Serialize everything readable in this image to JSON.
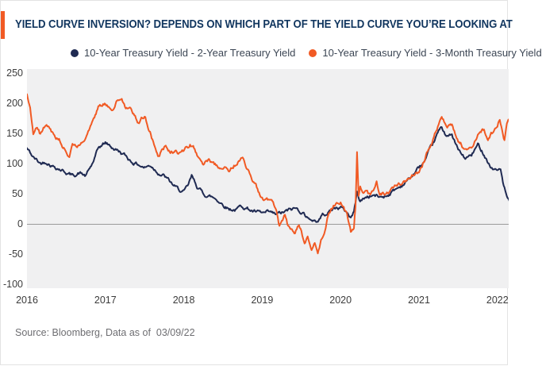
{
  "header": {
    "title": "YIELD CURVE INVERSION? DEPENDS ON WHICH PART OF THE YIELD CURVE YOU’RE LOOKING AT"
  },
  "footer": {
    "source": "Source: Bloomberg, Data as of  03/09/22"
  },
  "colors": {
    "accent_orange": "#f15a24",
    "title_navy": "#11365f",
    "plot_background": "#f0f0f1",
    "zero_line": "#9a9a9a",
    "axis_text": "#3b3b3b",
    "legend_text": "#3c4654",
    "source_text": "#6e6e72"
  },
  "chart_data": {
    "type": "line",
    "title": "YIELD CURVE INVERSION? DEPENDS ON WHICH PART OF THE YIELD CURVE YOU’RE LOOKING AT",
    "units": "basis points (spread)",
    "x_ticks": [
      "2016",
      "2017",
      "2018",
      "2019",
      "2020",
      "2021",
      "2022"
    ],
    "y_ticks": [
      250,
      200,
      150,
      100,
      50,
      0,
      -50,
      -100
    ],
    "ylim": [
      -106,
      256
    ],
    "x_range_years": [
      2016.0,
      2022.17
    ],
    "grid": false,
    "zero_line": true,
    "legend_position": "top",
    "series": [
      {
        "name": "10-Year Treasury Yield - 2-Year Treasury Yield",
        "color": "#1f2a52",
        "noise": 2.4,
        "points": [
          [
            2016.0,
            125
          ],
          [
            2016.08,
            110
          ],
          [
            2016.17,
            100
          ],
          [
            2016.25,
            104
          ],
          [
            2016.33,
            97
          ],
          [
            2016.42,
            92
          ],
          [
            2016.5,
            86
          ],
          [
            2016.58,
            80
          ],
          [
            2016.67,
            85
          ],
          [
            2016.75,
            79
          ],
          [
            2016.83,
            98
          ],
          [
            2016.92,
            126
          ],
          [
            2017.0,
            134
          ],
          [
            2017.08,
            127
          ],
          [
            2017.17,
            121
          ],
          [
            2017.25,
            113
          ],
          [
            2017.33,
            104
          ],
          [
            2017.42,
            99
          ],
          [
            2017.5,
            94
          ],
          [
            2017.58,
            97
          ],
          [
            2017.67,
            87
          ],
          [
            2017.75,
            80
          ],
          [
            2017.83,
            68
          ],
          [
            2017.92,
            57
          ],
          [
            2018.0,
            52
          ],
          [
            2018.05,
            60
          ],
          [
            2018.1,
            77
          ],
          [
            2018.17,
            62
          ],
          [
            2018.25,
            50
          ],
          [
            2018.33,
            46
          ],
          [
            2018.42,
            41
          ],
          [
            2018.5,
            33
          ],
          [
            2018.58,
            26
          ],
          [
            2018.67,
            24
          ],
          [
            2018.75,
            30
          ],
          [
            2018.83,
            25
          ],
          [
            2018.92,
            19
          ],
          [
            2019.0,
            16
          ],
          [
            2019.08,
            17
          ],
          [
            2019.17,
            14
          ],
          [
            2019.25,
            17
          ],
          [
            2019.33,
            21
          ],
          [
            2019.42,
            25
          ],
          [
            2019.5,
            21
          ],
          [
            2019.58,
            13
          ],
          [
            2019.62,
            3
          ],
          [
            2019.67,
            7
          ],
          [
            2019.71,
            4
          ],
          [
            2019.75,
            13
          ],
          [
            2019.83,
            20
          ],
          [
            2019.92,
            26
          ],
          [
            2020.0,
            28
          ],
          [
            2020.08,
            19
          ],
          [
            2020.13,
            11
          ],
          [
            2020.17,
            20
          ],
          [
            2020.21,
            52
          ],
          [
            2020.25,
            38
          ],
          [
            2020.33,
            45
          ],
          [
            2020.42,
            48
          ],
          [
            2020.5,
            44
          ],
          [
            2020.58,
            47
          ],
          [
            2020.67,
            55
          ],
          [
            2020.75,
            61
          ],
          [
            2020.83,
            70
          ],
          [
            2020.92,
            80
          ],
          [
            2021.0,
            93
          ],
          [
            2021.08,
            104
          ],
          [
            2021.17,
            128
          ],
          [
            2021.25,
            152
          ],
          [
            2021.29,
            158
          ],
          [
            2021.33,
            150
          ],
          [
            2021.42,
            146
          ],
          [
            2021.5,
            122
          ],
          [
            2021.58,
            108
          ],
          [
            2021.67,
            113
          ],
          [
            2021.75,
            130
          ],
          [
            2021.83,
            117
          ],
          [
            2021.92,
            94
          ],
          [
            2022.0,
            88
          ],
          [
            2022.04,
            93
          ],
          [
            2022.08,
            62
          ],
          [
            2022.11,
            48
          ],
          [
            2022.14,
            38
          ],
          [
            2022.17,
            26
          ]
        ]
      },
      {
        "name": "10-Year Treasury Yield - 3-Month Treasury Yield",
        "color": "#f15a24",
        "noise": 2.8,
        "points": [
          [
            2016.0,
            215
          ],
          [
            2016.04,
            195
          ],
          [
            2016.08,
            152
          ],
          [
            2016.13,
            160
          ],
          [
            2016.17,
            148
          ],
          [
            2016.21,
            162
          ],
          [
            2016.25,
            168
          ],
          [
            2016.33,
            152
          ],
          [
            2016.42,
            140
          ],
          [
            2016.5,
            122
          ],
          [
            2016.54,
            113
          ],
          [
            2016.58,
            127
          ],
          [
            2016.67,
            130
          ],
          [
            2016.75,
            138
          ],
          [
            2016.83,
            170
          ],
          [
            2016.92,
            196
          ],
          [
            2017.0,
            202
          ],
          [
            2017.08,
            196
          ],
          [
            2017.17,
            208
          ],
          [
            2017.21,
            212
          ],
          [
            2017.25,
            196
          ],
          [
            2017.33,
            188
          ],
          [
            2017.42,
            170
          ],
          [
            2017.5,
            178
          ],
          [
            2017.58,
            150
          ],
          [
            2017.63,
            128
          ],
          [
            2017.67,
            115
          ],
          [
            2017.75,
            128
          ],
          [
            2017.83,
            122
          ],
          [
            2017.92,
            118
          ],
          [
            2018.0,
            122
          ],
          [
            2018.08,
            131
          ],
          [
            2018.13,
            125
          ],
          [
            2018.17,
            113
          ],
          [
            2018.25,
            98
          ],
          [
            2018.33,
            106
          ],
          [
            2018.42,
            96
          ],
          [
            2018.46,
            90
          ],
          [
            2018.54,
            100
          ],
          [
            2018.58,
            91
          ],
          [
            2018.67,
            102
          ],
          [
            2018.75,
            107
          ],
          [
            2018.83,
            86
          ],
          [
            2018.92,
            62
          ],
          [
            2019.0,
            42
          ],
          [
            2019.08,
            36
          ],
          [
            2019.17,
            25
          ],
          [
            2019.22,
            -4
          ],
          [
            2019.25,
            10
          ],
          [
            2019.29,
            14
          ],
          [
            2019.33,
            -6
          ],
          [
            2019.42,
            -12
          ],
          [
            2019.46,
            -2
          ],
          [
            2019.5,
            -8
          ],
          [
            2019.54,
            -28
          ],
          [
            2019.58,
            -20
          ],
          [
            2019.63,
            -46
          ],
          [
            2019.67,
            -35
          ],
          [
            2019.71,
            -54
          ],
          [
            2019.75,
            -28
          ],
          [
            2019.79,
            -12
          ],
          [
            2019.83,
            10
          ],
          [
            2019.88,
            22
          ],
          [
            2019.92,
            30
          ],
          [
            2020.0,
            33
          ],
          [
            2020.04,
            25
          ],
          [
            2020.08,
            12
          ],
          [
            2020.13,
            -14
          ],
          [
            2020.17,
            -5
          ],
          [
            2020.19,
            30
          ],
          [
            2020.21,
            120
          ],
          [
            2020.23,
            45
          ],
          [
            2020.25,
            58
          ],
          [
            2020.29,
            48
          ],
          [
            2020.33,
            56
          ],
          [
            2020.38,
            45
          ],
          [
            2020.42,
            52
          ],
          [
            2020.46,
            72
          ],
          [
            2020.5,
            50
          ],
          [
            2020.58,
            52
          ],
          [
            2020.67,
            58
          ],
          [
            2020.75,
            64
          ],
          [
            2020.83,
            70
          ],
          [
            2020.92,
            80
          ],
          [
            2021.0,
            88
          ],
          [
            2021.08,
            112
          ],
          [
            2021.17,
            140
          ],
          [
            2021.25,
            163
          ],
          [
            2021.29,
            172
          ],
          [
            2021.33,
            166
          ],
          [
            2021.42,
            160
          ],
          [
            2021.5,
            140
          ],
          [
            2021.58,
            125
          ],
          [
            2021.67,
            128
          ],
          [
            2021.75,
            150
          ],
          [
            2021.83,
            158
          ],
          [
            2021.88,
            140
          ],
          [
            2021.92,
            150
          ],
          [
            2022.0,
            160
          ],
          [
            2022.03,
            172
          ],
          [
            2022.06,
            158
          ],
          [
            2022.09,
            142
          ],
          [
            2022.12,
            166
          ],
          [
            2022.15,
            174
          ],
          [
            2022.17,
            170
          ]
        ]
      }
    ]
  }
}
